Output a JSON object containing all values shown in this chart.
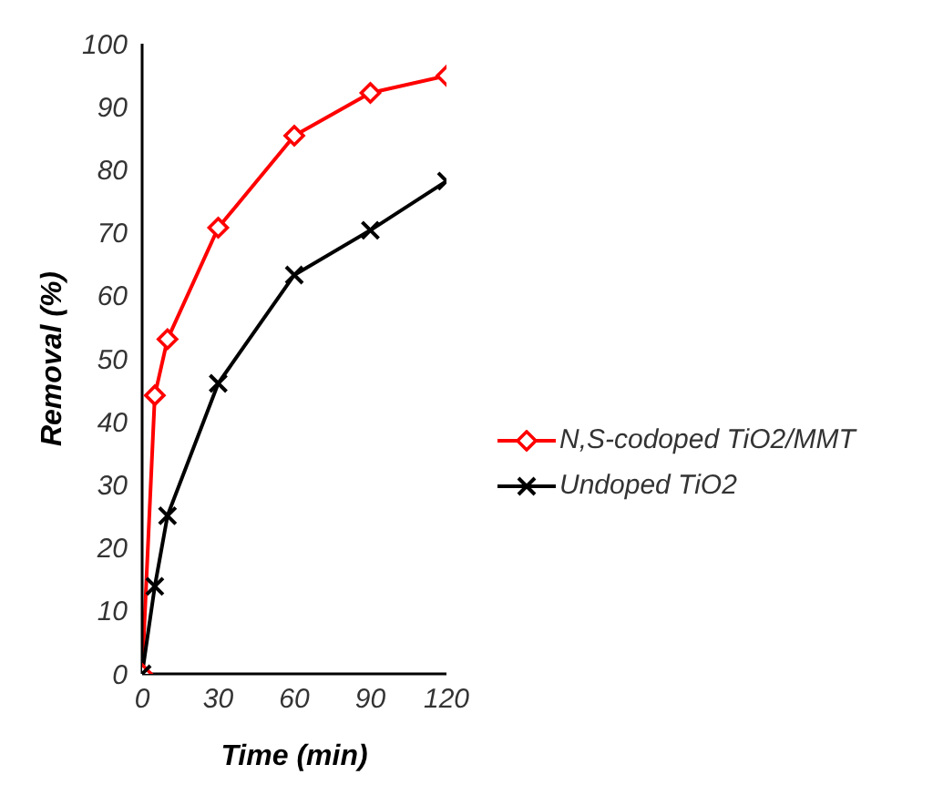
{
  "chart_data": {
    "type": "line",
    "xlabel": "Time (min)",
    "ylabel": "Removal (%)",
    "x": [
      0,
      5,
      10,
      30,
      60,
      90,
      120
    ],
    "series": [
      {
        "name": "N,S-codoped TiO2/MMT",
        "color": "#ff0000",
        "marker": "diamond",
        "values": [
          0,
          44.2,
          53.1,
          70.8,
          85.4,
          92.2,
          94.9
        ]
      },
      {
        "name": "Undoped TiO2",
        "color": "#000000",
        "marker": "cross",
        "values": [
          0,
          13.9,
          25.1,
          46.1,
          63.3,
          70.4,
          78.2
        ]
      }
    ],
    "xlim": [
      0,
      120
    ],
    "xticks": [
      0,
      30,
      60,
      90,
      120
    ],
    "ylim": [
      0,
      100
    ],
    "yticks": [
      0,
      10,
      20,
      30,
      40,
      50,
      60,
      70,
      80,
      90,
      100
    ],
    "legend": "right",
    "grid": false
  }
}
